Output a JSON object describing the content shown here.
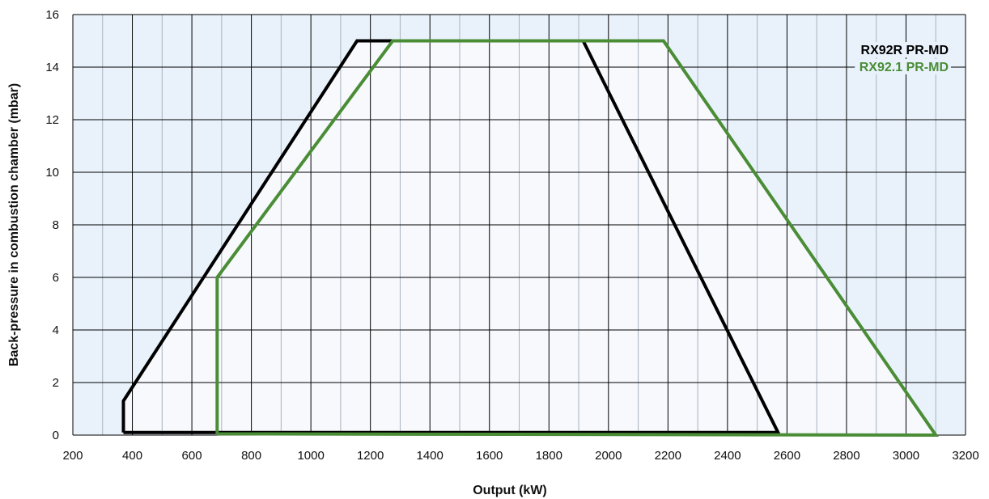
{
  "chart_data": {
    "type": "area",
    "xlabel": "Output (kW)",
    "ylabel": "Back-pressure in combustion chamber (mbar)",
    "xlim": [
      200,
      3200
    ],
    "ylim": [
      0,
      16
    ],
    "x_ticks": [
      200,
      400,
      600,
      800,
      1000,
      1200,
      1400,
      1600,
      1800,
      2000,
      2200,
      2400,
      2600,
      2800,
      3000,
      3200
    ],
    "y_ticks": [
      0,
      2,
      4,
      6,
      8,
      10,
      12,
      14,
      16
    ],
    "x_minor_step": 100,
    "y_minor_step": 2,
    "grid": true,
    "legend_position": "top-right",
    "series": [
      {
        "name": "RX92R PR-MD",
        "color": "#000000",
        "points": [
          [
            370,
            0.1
          ],
          [
            370,
            1.3
          ],
          [
            1155,
            15.0
          ],
          [
            1915,
            15.0
          ],
          [
            2570,
            0.1
          ],
          [
            370,
            0.1
          ]
        ]
      },
      {
        "name": "RX92.1 PR-MD",
        "color": "#4a8d36",
        "points": [
          [
            685,
            0.05
          ],
          [
            685,
            6.0
          ],
          [
            1275,
            15.0
          ],
          [
            2185,
            15.0
          ],
          [
            3100,
            0.0
          ],
          [
            685,
            0.05
          ]
        ]
      }
    ],
    "colors": {
      "plot_background": "#e9f2fb",
      "envelope_fill": "#f7f9fd",
      "grid_major": "#000000",
      "grid_minor": "#a7b2bd"
    }
  }
}
